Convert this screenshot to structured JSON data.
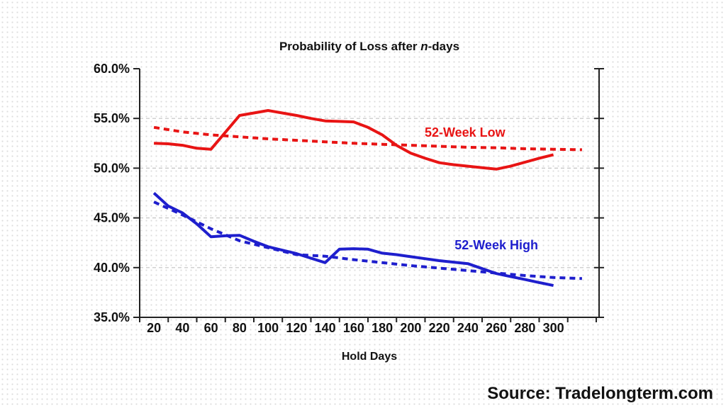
{
  "title": {
    "prefix": "Probability of Loss after ",
    "italic": "n",
    "suffix": "-days"
  },
  "source": "Source: Tradelongterm.com",
  "x_axis": {
    "label": "Hold Days",
    "tick_values": [
      20,
      40,
      60,
      80,
      100,
      120,
      140,
      160,
      180,
      200,
      220,
      240,
      260,
      280,
      300
    ]
  },
  "y_axis": {
    "ticks": [
      {
        "value": 60,
        "label": "60.0%"
      },
      {
        "value": 55,
        "label": "55.0%"
      },
      {
        "value": 50,
        "label": "50.0%"
      },
      {
        "value": 45,
        "label": "45.0%"
      },
      {
        "value": 40,
        "label": "40.0%"
      },
      {
        "value": 35,
        "label": "35.0%"
      }
    ]
  },
  "colors": {
    "red_series": "#e81414",
    "blue_series": "#1e1ecd",
    "gridline": "#c4c4c4",
    "axis": "#222222",
    "text": "#111111"
  },
  "chart_data": {
    "type": "line",
    "title": "Probability of Loss after n-days",
    "xlabel": "Hold Days",
    "ylabel": "",
    "xlim": [
      10,
      332
    ],
    "ylim": [
      35,
      60
    ],
    "grid": "horizontal-dashed",
    "gridline_values": [
      55,
      50,
      45,
      40
    ],
    "legend": "none (inline text annotations)",
    "series": [
      {
        "name": "52-Week Low",
        "color": "#e81414",
        "style": "solid",
        "x": [
          20,
          30,
          40,
          50,
          60,
          70,
          80,
          90,
          100,
          110,
          120,
          130,
          140,
          150,
          160,
          170,
          180,
          190,
          200,
          210,
          220,
          230,
          240,
          250,
          260,
          270,
          280,
          290,
          300
        ],
        "y": [
          52.5,
          52.45,
          52.3,
          52.0,
          51.9,
          53.6,
          55.3,
          55.55,
          55.8,
          55.55,
          55.3,
          55.0,
          54.75,
          54.7,
          54.65,
          54.1,
          53.35,
          52.3,
          51.5,
          51.0,
          50.55,
          50.35,
          50.2,
          50.05,
          49.9,
          50.2,
          50.6,
          51.0,
          51.35
        ]
      },
      {
        "name": "52-Week Low trendline",
        "color": "#e81414",
        "style": "dashed",
        "x": [
          20,
          40,
          60,
          80,
          100,
          120,
          140,
          160,
          180,
          200,
          220,
          240,
          260,
          280,
          300,
          320
        ],
        "y": [
          54.1,
          53.65,
          53.35,
          53.15,
          52.95,
          52.8,
          52.65,
          52.5,
          52.4,
          52.3,
          52.2,
          52.1,
          52.05,
          51.95,
          51.9,
          51.85
        ]
      },
      {
        "name": "52-Week High",
        "color": "#1e1ecd",
        "style": "solid",
        "x": [
          20,
          30,
          40,
          50,
          60,
          70,
          80,
          90,
          100,
          110,
          120,
          130,
          140,
          150,
          160,
          170,
          180,
          190,
          200,
          210,
          220,
          230,
          240,
          250,
          260,
          270,
          280,
          290,
          300
        ],
        "y": [
          47.5,
          46.2,
          45.5,
          44.4,
          43.1,
          43.2,
          43.25,
          42.65,
          42.1,
          41.75,
          41.4,
          40.95,
          40.5,
          41.85,
          41.9,
          41.85,
          41.45,
          41.3,
          41.1,
          40.9,
          40.7,
          40.55,
          40.4,
          39.9,
          39.4,
          39.1,
          38.8,
          38.5,
          38.2
        ]
      },
      {
        "name": "52-Week High trendline",
        "color": "#1e1ecd",
        "style": "dashed",
        "x": [
          20,
          40,
          60,
          80,
          100,
          120,
          140,
          160,
          180,
          200,
          220,
          240,
          260,
          280,
          300,
          320
        ],
        "y": [
          46.6,
          45.3,
          43.9,
          42.7,
          42.0,
          41.3,
          41.15,
          40.8,
          40.5,
          40.2,
          39.95,
          39.7,
          39.45,
          39.2,
          39.0,
          38.9
        ]
      }
    ],
    "annotations": [
      {
        "text": "52-Week Low",
        "color": "#e81414",
        "x_day": 238,
        "y_pct": 53.6
      },
      {
        "text": "52-Week High",
        "color": "#1e1ecd",
        "x_day": 260,
        "y_pct": 42.25
      }
    ]
  }
}
